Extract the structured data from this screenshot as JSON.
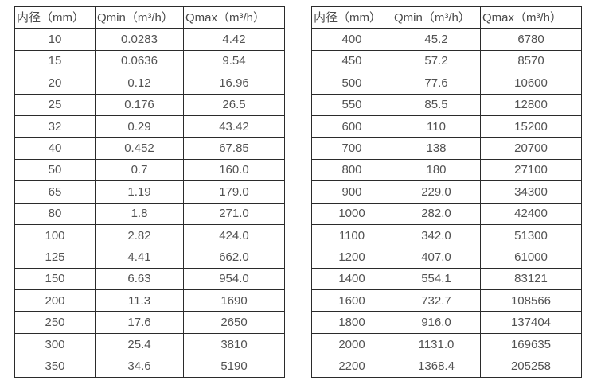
{
  "colors": {
    "background": "#ffffff",
    "border": "#2b2b2b",
    "header_text": "#4a4a4a",
    "cell_text": "#525252"
  },
  "chart_data": [
    {
      "type": "table",
      "name": "flow-spec-table-small-diameters",
      "columns": [
        "内径（mm）",
        "Qmin（m³/h）",
        "Qmax（m³/h）"
      ],
      "rows": [
        [
          "10",
          "0.0283",
          "4.42"
        ],
        [
          "15",
          "0.0636",
          "9.54"
        ],
        [
          "20",
          "0.12",
          "16.96"
        ],
        [
          "25",
          "0.176",
          "26.5"
        ],
        [
          "32",
          "0.29",
          "43.42"
        ],
        [
          "40",
          "0.452",
          "67.85"
        ],
        [
          "50",
          "0.7",
          "160.0"
        ],
        [
          "65",
          "1.19",
          "179.0"
        ],
        [
          "80",
          "1.8",
          "271.0"
        ],
        [
          "100",
          "2.82",
          "424.0"
        ],
        [
          "125",
          "4.41",
          "662.0"
        ],
        [
          "150",
          "6.63",
          "954.0"
        ],
        [
          "200",
          "11.3",
          "1690"
        ],
        [
          "250",
          "17.6",
          "2650"
        ],
        [
          "300",
          "25.4",
          "3810"
        ],
        [
          "350",
          "34.6",
          "5190"
        ]
      ]
    },
    {
      "type": "table",
      "name": "flow-spec-table-large-diameters",
      "columns": [
        "内径（mm）",
        "Qmin（m³/h）",
        "Qmax（m³/h）"
      ],
      "rows": [
        [
          "400",
          "45.2",
          "6780"
        ],
        [
          "450",
          "57.2",
          "8570"
        ],
        [
          "500",
          "77.6",
          "10600"
        ],
        [
          "550",
          "85.5",
          "12800"
        ],
        [
          "600",
          "110",
          "15200"
        ],
        [
          "700",
          "138",
          "20700"
        ],
        [
          "800",
          "180",
          "27100"
        ],
        [
          "900",
          "229.0",
          "34300"
        ],
        [
          "1000",
          "282.0",
          "42400"
        ],
        [
          "1100",
          "342.0",
          "51300"
        ],
        [
          "1200",
          "407.0",
          "61000"
        ],
        [
          "1400",
          "554.1",
          "83121"
        ],
        [
          "1600",
          "732.7",
          "108566"
        ],
        [
          "1800",
          "916.0",
          "137404"
        ],
        [
          "2000",
          "1131.0",
          "169635"
        ],
        [
          "2200",
          "1368.4",
          "205258"
        ]
      ]
    }
  ]
}
